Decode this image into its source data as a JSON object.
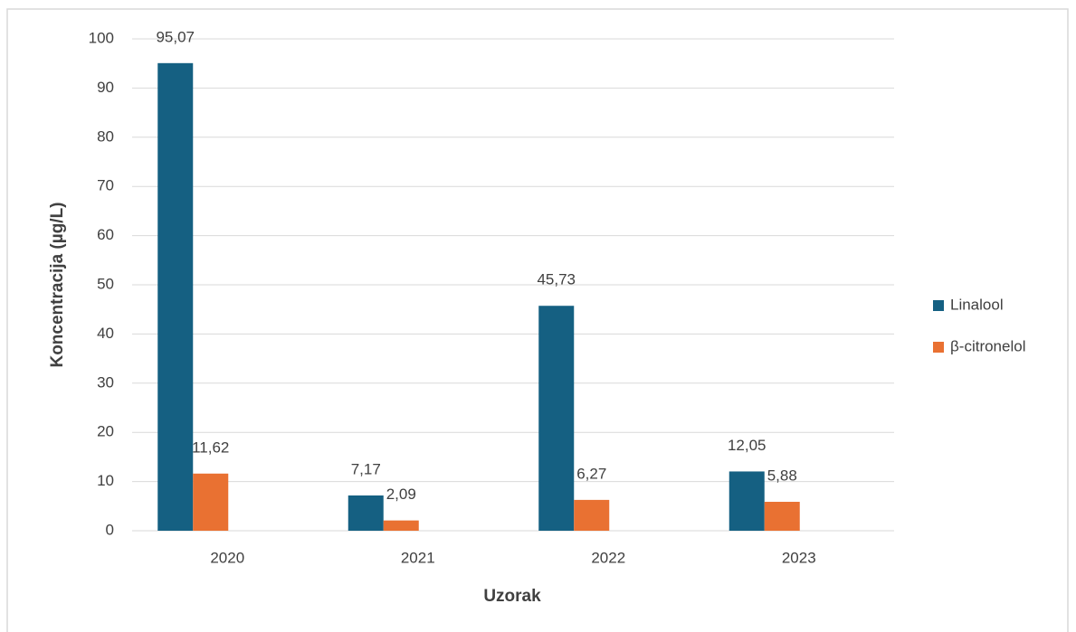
{
  "chart_data": {
    "type": "bar",
    "categories": [
      "2020",
      "2021",
      "2022",
      "2023"
    ],
    "series": [
      {
        "name": "Linalool",
        "color": "#156082",
        "values": [
          95.07,
          7.17,
          45.73,
          12.05
        ],
        "value_labels": [
          "95,07",
          "7,17",
          "45,73",
          "12,05"
        ]
      },
      {
        "name": "β-citronelol",
        "color": "#e97132",
        "values": [
          11.62,
          2.09,
          6.27,
          5.88
        ],
        "value_labels": [
          "11,62",
          "2,09",
          "6,27",
          "5,88"
        ]
      }
    ],
    "ylim": [
      0,
      100
    ],
    "yticks": [
      0,
      10,
      20,
      30,
      40,
      50,
      60,
      70,
      80,
      90,
      100
    ],
    "x_label": "Uzorak",
    "y_label": "Koncentracija (µg/L)",
    "grid": true,
    "legend": "right"
  }
}
